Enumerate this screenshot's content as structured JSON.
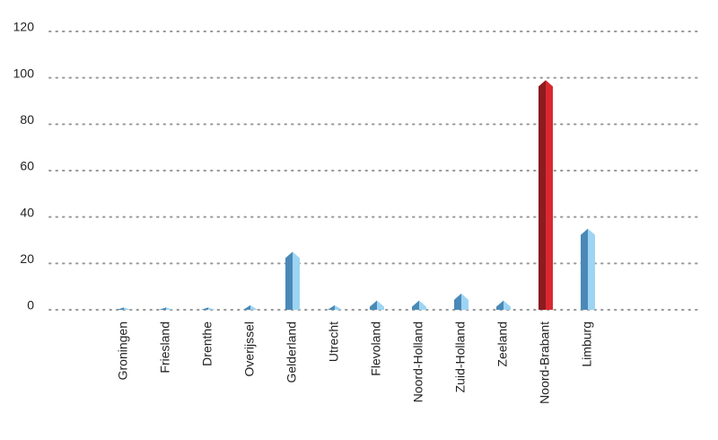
{
  "chart_data": {
    "type": "bar",
    "categories": [
      "Groningen",
      "Friesland",
      "Drenthe",
      "Overijssel",
      "Gelderland",
      "Utrecht",
      "Flevoland",
      "Noord-Holland",
      "Zuid-Holland",
      "Zeeland",
      "Noord-Brabant",
      "Limburg"
    ],
    "values": [
      1,
      1,
      1,
      2,
      25,
      2,
      4,
      4,
      7,
      4,
      99,
      35
    ],
    "colors": [
      "#4a89b7",
      "#4a89b7",
      "#4a89b7",
      "#4a89b7",
      "#4a89b7",
      "#4a89b7",
      "#4a89b7",
      "#4a89b7",
      "#4a89b7",
      "#4a89b7",
      "#8c1b20",
      "#4a89b7"
    ],
    "face_colors": [
      "#9dd4f3",
      "#9dd4f3",
      "#9dd4f3",
      "#9dd4f3",
      "#9dd4f3",
      "#9dd4f3",
      "#9dd4f3",
      "#9dd4f3",
      "#9dd4f3",
      "#9dd4f3",
      "#d8292f",
      "#9dd4f3"
    ],
    "ylim": [
      0,
      120
    ],
    "yticks": [
      0,
      20,
      40,
      60,
      80,
      100,
      120
    ],
    "grid": true
  }
}
